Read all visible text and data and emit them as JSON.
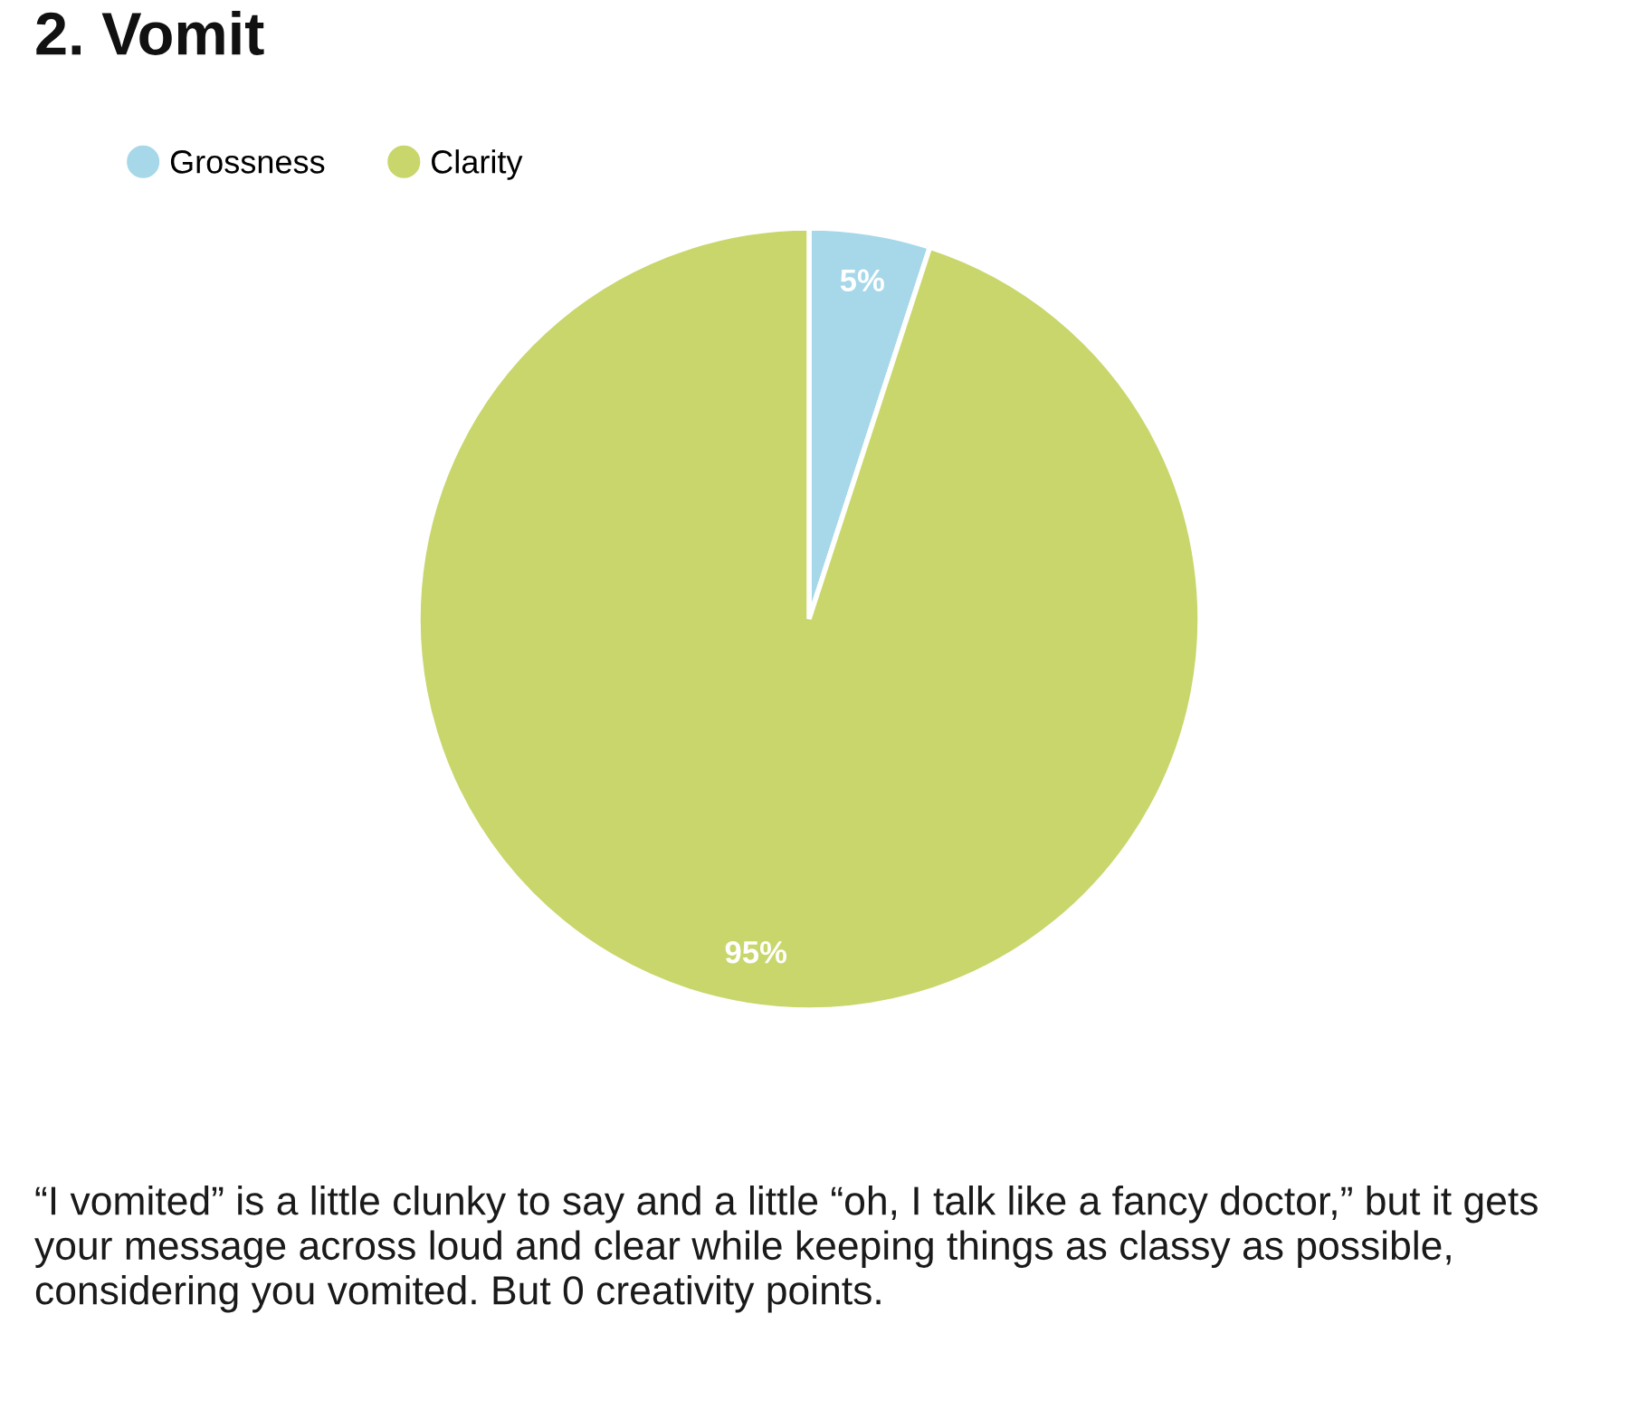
{
  "chart_data": {
    "type": "pie",
    "title": "2. Vomit",
    "categories": [
      "Grossness",
      "Clarity"
    ],
    "values": [
      5,
      95
    ],
    "colors": [
      "#a6d8ea",
      "#c9d66b"
    ],
    "value_labels": [
      "5%",
      "95%"
    ],
    "legend": "top left",
    "annotations": [
      "“I vomited” is a little clunky to say and a little “oh, I talk like a fancy doctor,” but it gets your message across loud and clear while keeping things as classy as possible, considering you vomited. But 0 creativity points."
    ]
  }
}
